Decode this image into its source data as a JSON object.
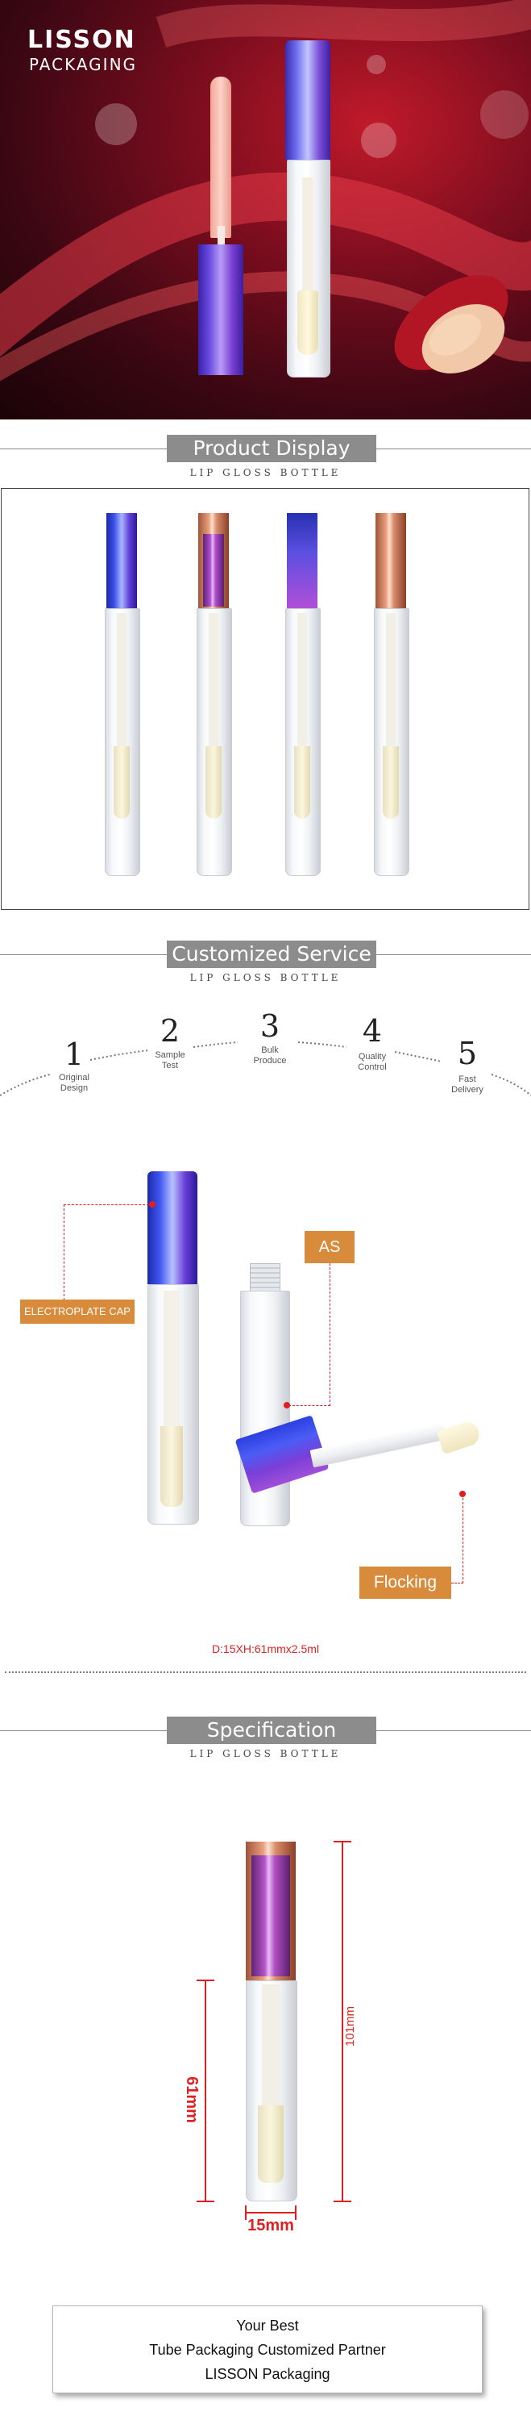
{
  "hero": {
    "brand_name": "LISSON",
    "brand_sub": "PACKAGING"
  },
  "sections": {
    "display": {
      "title": "Product Display",
      "subtitle": "LIP GLOSS BOTTLE"
    },
    "service": {
      "title": "Customized Service",
      "subtitle": "LIP GLOSS BOTTLE"
    },
    "spec": {
      "title": "Specification",
      "subtitle": "LIP GLOSS BOTTLE"
    }
  },
  "process": [
    {
      "num": "1",
      "label": "Original\nDesign"
    },
    {
      "num": "2",
      "label": "Sample\nTest"
    },
    {
      "num": "3",
      "label": "Bulk\nProduce"
    },
    {
      "num": "4",
      "label": "Quality\nControl"
    },
    {
      "num": "5",
      "label": "Fast\nDelivery"
    }
  ],
  "callouts": {
    "cap": "ELECTROPLATE CAP",
    "body": "AS",
    "brush": "Flocking"
  },
  "dimension_note": "D:15XH:61mmx2.5ml",
  "spec_dims": {
    "height_total": "101mm",
    "height_body": "61mm",
    "diameter": "15mm"
  },
  "footer": {
    "line1": "Your Best",
    "line2": "Tube Packaging Customized Partner",
    "line3": "LISSON Packaging"
  },
  "colors": {
    "section_bg": "#8c8c8c",
    "callout": "#d88b3a",
    "dimension_red": "#e02020"
  }
}
